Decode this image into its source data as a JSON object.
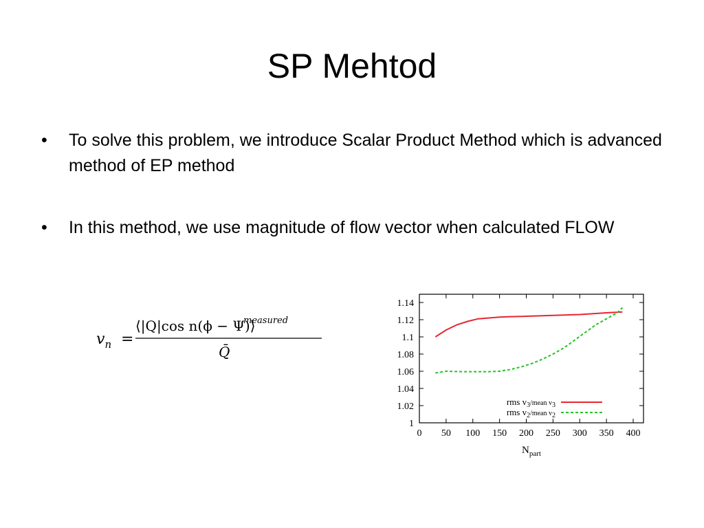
{
  "slide": {
    "title": "SP Mehtod",
    "bullets": [
      {
        "marker": "•",
        "text": "To solve this problem, we introduce Scalar Product Method which is advanced method of EP method"
      },
      {
        "marker": "•",
        "text": "In this method, we use magnitude of flow vector when calculated FLOW"
      }
    ]
  },
  "formula": {
    "lhs": "v",
    "lhs_sub": "n",
    "equals": "=",
    "numerator": "⟨|Q|cos n(ϕ − Ψ)⟩",
    "psi_sup": "measured",
    "denominator": "Q̄"
  },
  "chart_data": {
    "type": "line",
    "title": "",
    "xlabel": "N",
    "xlabel_sub": "part",
    "ylabel": "",
    "xlim": [
      0,
      400
    ],
    "ylim": [
      1,
      1.14
    ],
    "xticks": [
      0,
      50,
      100,
      150,
      200,
      250,
      300,
      350,
      400
    ],
    "yticks": [
      1,
      1.02,
      1.04,
      1.06,
      1.08,
      1.1,
      1.12,
      1.14
    ],
    "legend_position": "bottom-right",
    "series": [
      {
        "name": "rms v3/mean v3",
        "color": "#e8242f",
        "style": "solid",
        "x": [
          30,
          50,
          70,
          90,
          110,
          130,
          150,
          170,
          200,
          250,
          300,
          350,
          380
        ],
        "y": [
          1.1,
          1.108,
          1.114,
          1.118,
          1.121,
          1.122,
          1.123,
          1.1235,
          1.124,
          1.125,
          1.126,
          1.128,
          1.129
        ]
      },
      {
        "name": "rms v2/mean v2",
        "color": "#22c322",
        "style": "dashed",
        "x": [
          30,
          50,
          80,
          100,
          130,
          150,
          170,
          190,
          210,
          230,
          250,
          270,
          290,
          310,
          330,
          350,
          370,
          380
        ],
        "y": [
          1.058,
          1.06,
          1.0595,
          1.0595,
          1.0595,
          1.06,
          1.062,
          1.065,
          1.069,
          1.074,
          1.08,
          1.087,
          1.096,
          1.105,
          1.114,
          1.121,
          1.128,
          1.134
        ]
      }
    ]
  }
}
